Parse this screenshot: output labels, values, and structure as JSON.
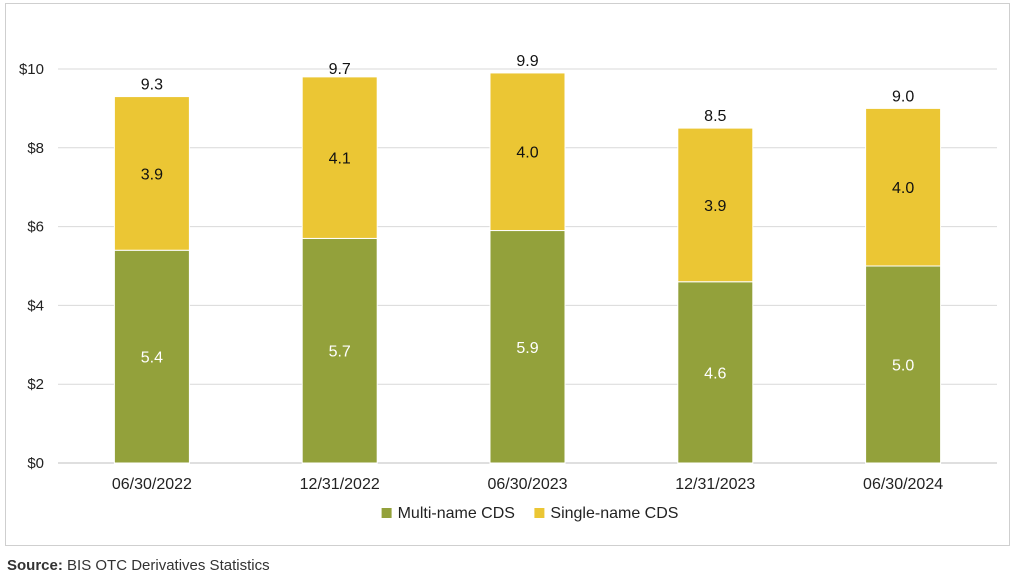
{
  "chart_data": {
    "type": "bar",
    "stacked": true,
    "categories": [
      "06/30/2022",
      "12/31/2022",
      "06/30/2023",
      "12/31/2023",
      "06/30/2024"
    ],
    "series": [
      {
        "name": "Multi-name CDS",
        "values": [
          5.4,
          5.7,
          5.9,
          4.6,
          5.0
        ],
        "color": "#93a13b",
        "label_color": "#ffffff"
      },
      {
        "name": "Single-name CDS",
        "values": [
          3.9,
          4.1,
          4.0,
          3.9,
          4.0
        ],
        "color": "#ebc634",
        "label_color": "#111111"
      }
    ],
    "totals": [
      "9.3",
      "9.7",
      "9.9",
      "8.5",
      "9.0"
    ],
    "segment_labels": [
      [
        "5.4",
        "5.7",
        "5.9",
        "4.6",
        "5.0"
      ],
      [
        "3.9",
        "4.1",
        "4.0",
        "3.9",
        "4.0"
      ]
    ],
    "ylim": [
      0,
      10
    ],
    "yticks": [
      0,
      2,
      4,
      6,
      8,
      10
    ],
    "ytick_labels": [
      "$0",
      "$2",
      "$4",
      "$6",
      "$8",
      "$10"
    ],
    "grid": true,
    "gridline_color": "#d9d9d9",
    "legend_position": "bottom-center"
  },
  "source": {
    "label": "Source:",
    "text": "BIS OTC Derivatives Statistics"
  }
}
